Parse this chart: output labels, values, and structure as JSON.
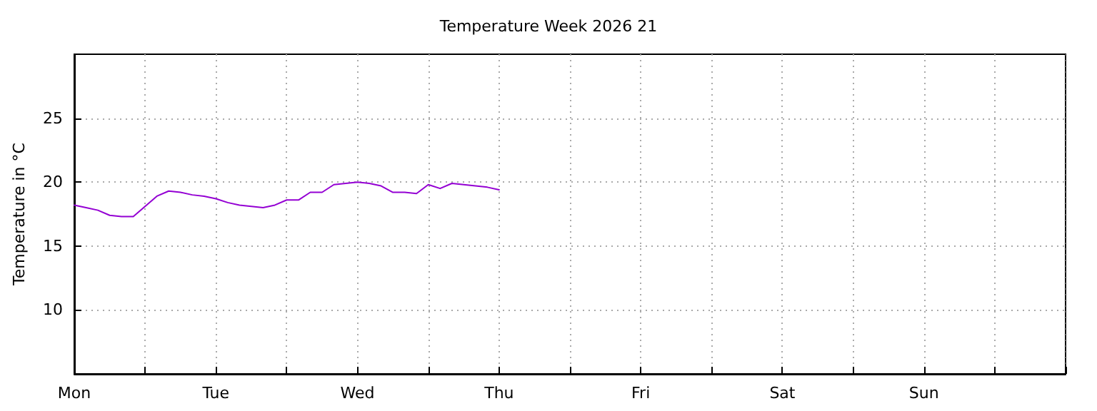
{
  "chart_data": {
    "type": "line",
    "title": "Temperature Week 2026 21",
    "ylabel": "Temperature in °C",
    "categories": [
      "Mon",
      null,
      null,
      null,
      null,
      null,
      null,
      null,
      null,
      null,
      null,
      null,
      "Tue",
      null,
      null,
      null,
      null,
      null,
      null,
      null,
      null,
      null,
      null,
      null,
      "Wed",
      null,
      null,
      null,
      null,
      null,
      null,
      null,
      null,
      null,
      null,
      null,
      "Thu",
      null,
      null,
      null,
      null,
      null,
      null,
      null,
      null,
      null,
      null,
      null,
      "Fri",
      null,
      null,
      null,
      null,
      null,
      null,
      null,
      null,
      null,
      null,
      null,
      "Sat",
      null,
      null,
      null,
      null,
      null,
      null,
      null,
      null,
      null,
      null,
      null,
      "Sun",
      null,
      null,
      null,
      null,
      null,
      null,
      null,
      null,
      null,
      null,
      null,
      null
    ],
    "ylim": [
      5,
      30
    ],
    "yticks": [
      10,
      15,
      20,
      25
    ],
    "grid": true,
    "marker": "none",
    "line_style": "solid",
    "series": [
      {
        "color": "#9400d3",
        "values": [
          18.2,
          18.0,
          17.8,
          17.4,
          17.3,
          17.3,
          18.1,
          18.9,
          19.3,
          19.2,
          19.0,
          18.9,
          18.7,
          18.4,
          18.2,
          18.1,
          18.0,
          18.2,
          18.6,
          18.6,
          19.2,
          19.2,
          19.8,
          19.9,
          20.0,
          19.9,
          19.7,
          19.2,
          19.2,
          19.1,
          19.8,
          19.5,
          19.9,
          19.8,
          19.7,
          19.6,
          19.4,
          null,
          null,
          null,
          null,
          null,
          null,
          null,
          null,
          null,
          null,
          null,
          null,
          null,
          null,
          null,
          null,
          null,
          null,
          null,
          null,
          null,
          null,
          null,
          null,
          null,
          null,
          null,
          null,
          null,
          null,
          null,
          null,
          null,
          null,
          null,
          null,
          null,
          null,
          null,
          null,
          null,
          null,
          null,
          null,
          null,
          null,
          null,
          null
        ]
      }
    ]
  }
}
